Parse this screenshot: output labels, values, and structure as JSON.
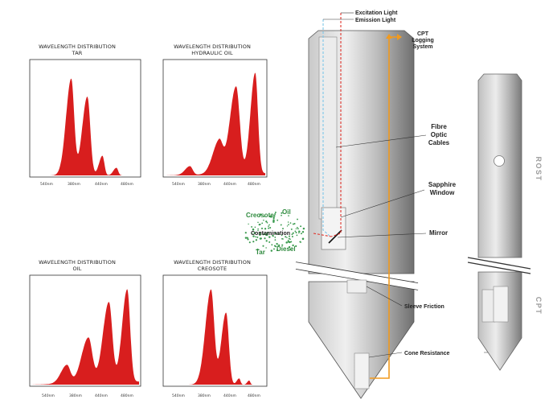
{
  "charts": [
    {
      "title_line1": "WAVELENGTH DISTRIBUTION",
      "title_line2": "TAR",
      "ticks": [
        "540nm",
        "380nm",
        "440nm",
        "480nm"
      ],
      "peak_color": "#d81e1e"
    },
    {
      "title_line1": "WAVELENGTH DISTRIBUTION",
      "title_line2": "HYDRAULIC OIL",
      "ticks": [
        "540nm",
        "380nm",
        "440nm",
        "480nm"
      ],
      "peak_color": "#d81e1e"
    },
    {
      "title_line1": "WAVELENGTH DISTRIBUTION",
      "title_line2": "OIL",
      "ticks": [
        "540nm",
        "380nm",
        "440nm",
        "480nm"
      ],
      "peak_color": "#d81e1e"
    },
    {
      "title_line1": "WAVELENGTH DISTRIBUTION",
      "title_line2": "CREOSOTE",
      "ticks": [
        "540nm",
        "380nm",
        "440nm",
        "480nm"
      ],
      "peak_color": "#d81e1e"
    }
  ],
  "labels": {
    "excitation_light": "Excitation Light",
    "emission_light": "Emission Light",
    "cpt_logging_1": "CPT",
    "cpt_logging_2": "Logging",
    "cpt_logging_3": "System",
    "fibre_1": "Fibre",
    "fibre_2": "Optic",
    "fibre_3": "Cables",
    "sapphire_1": "Sapphire",
    "sapphire_2": "Window",
    "mirror": "Mirror",
    "sleeve_friction": "Sleeve Friction",
    "cone_resistance": "Cone Resistance",
    "contamination": "Contamination",
    "oil": "Oil",
    "creosote": "Creosote",
    "diesel": "Diesel",
    "tar": "Tar",
    "rost": "ROST",
    "cpt_side": "CPT"
  },
  "colors": {
    "excitation": "#e0342c",
    "emission": "#7cc6e8",
    "logging_line": "#f29a1d",
    "contamination_dots": "#3a9a4e"
  }
}
